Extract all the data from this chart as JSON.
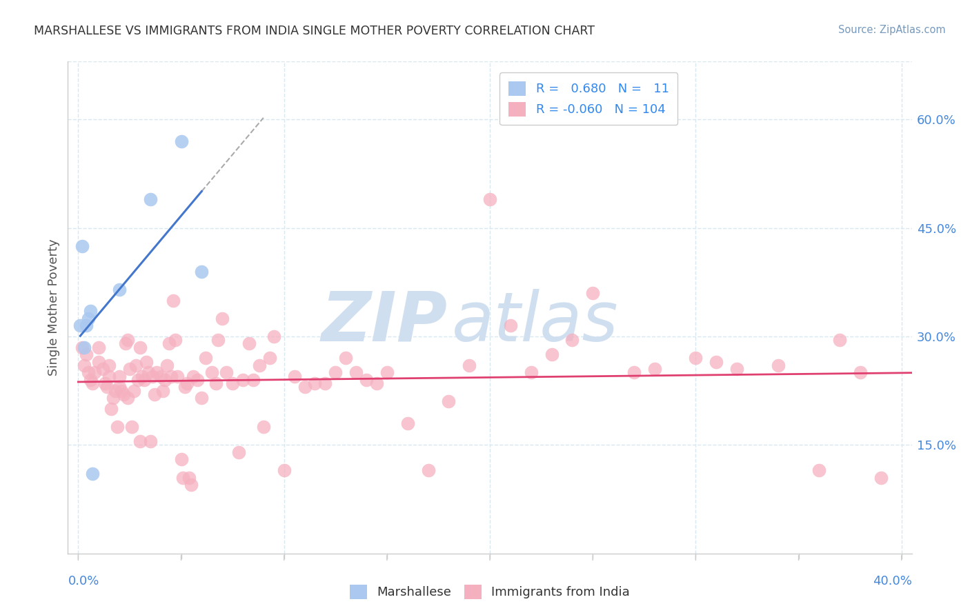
{
  "title": "MARSHALLESE VS IMMIGRANTS FROM INDIA SINGLE MOTHER POVERTY CORRELATION CHART",
  "source": "Source: ZipAtlas.com",
  "ylabel": "Single Mother Poverty",
  "right_yticks": [
    "60.0%",
    "45.0%",
    "30.0%",
    "15.0%"
  ],
  "right_ytick_vals": [
    0.6,
    0.45,
    0.3,
    0.15
  ],
  "xlim": [
    -0.005,
    0.405
  ],
  "ylim": [
    0.0,
    0.68
  ],
  "legend_r_blue": "0.680",
  "legend_n_blue": "11",
  "legend_r_pink": "-0.060",
  "legend_n_pink": "104",
  "blue_color": "#aac8f0",
  "pink_color": "#f5b0c0",
  "trend_blue": "#4477cc",
  "trend_pink": "#e04070",
  "watermark_zip": "ZIP",
  "watermark_atlas": "atlas",
  "watermark_color": "#d0dff0",
  "blue_scatter_x": [
    0.001,
    0.002,
    0.003,
    0.004,
    0.005,
    0.006,
    0.007,
    0.02,
    0.035,
    0.05,
    0.06
  ],
  "blue_scatter_y": [
    0.315,
    0.425,
    0.285,
    0.315,
    0.325,
    0.335,
    0.11,
    0.365,
    0.49,
    0.57,
    0.39
  ],
  "pink_scatter_x": [
    0.002,
    0.003,
    0.004,
    0.005,
    0.006,
    0.007,
    0.008,
    0.01,
    0.01,
    0.012,
    0.013,
    0.014,
    0.015,
    0.015,
    0.016,
    0.017,
    0.018,
    0.019,
    0.02,
    0.02,
    0.021,
    0.022,
    0.023,
    0.024,
    0.024,
    0.025,
    0.026,
    0.027,
    0.028,
    0.029,
    0.03,
    0.03,
    0.031,
    0.032,
    0.033,
    0.034,
    0.035,
    0.036,
    0.037,
    0.038,
    0.04,
    0.041,
    0.042,
    0.043,
    0.044,
    0.045,
    0.046,
    0.047,
    0.048,
    0.05,
    0.051,
    0.052,
    0.053,
    0.054,
    0.055,
    0.056,
    0.058,
    0.06,
    0.062,
    0.065,
    0.067,
    0.068,
    0.07,
    0.072,
    0.075,
    0.078,
    0.08,
    0.083,
    0.085,
    0.088,
    0.09,
    0.093,
    0.095,
    0.1,
    0.105,
    0.11,
    0.115,
    0.12,
    0.125,
    0.13,
    0.135,
    0.14,
    0.145,
    0.15,
    0.16,
    0.17,
    0.18,
    0.19,
    0.2,
    0.21,
    0.22,
    0.23,
    0.24,
    0.25,
    0.27,
    0.28,
    0.3,
    0.31,
    0.32,
    0.34,
    0.36,
    0.37,
    0.38,
    0.39
  ],
  "pink_scatter_y": [
    0.285,
    0.26,
    0.275,
    0.25,
    0.24,
    0.235,
    0.25,
    0.265,
    0.285,
    0.255,
    0.235,
    0.23,
    0.245,
    0.26,
    0.2,
    0.215,
    0.225,
    0.175,
    0.23,
    0.245,
    0.225,
    0.22,
    0.29,
    0.295,
    0.215,
    0.255,
    0.175,
    0.225,
    0.26,
    0.24,
    0.155,
    0.285,
    0.245,
    0.24,
    0.265,
    0.25,
    0.155,
    0.245,
    0.22,
    0.25,
    0.245,
    0.225,
    0.24,
    0.26,
    0.29,
    0.245,
    0.35,
    0.295,
    0.245,
    0.13,
    0.105,
    0.23,
    0.235,
    0.105,
    0.095,
    0.245,
    0.24,
    0.215,
    0.27,
    0.25,
    0.235,
    0.295,
    0.325,
    0.25,
    0.235,
    0.14,
    0.24,
    0.29,
    0.24,
    0.26,
    0.175,
    0.27,
    0.3,
    0.115,
    0.245,
    0.23,
    0.235,
    0.235,
    0.25,
    0.27,
    0.25,
    0.24,
    0.235,
    0.25,
    0.18,
    0.115,
    0.21,
    0.26,
    0.49,
    0.315,
    0.25,
    0.275,
    0.295,
    0.36,
    0.25,
    0.255,
    0.27,
    0.265,
    0.255,
    0.26,
    0.115,
    0.295,
    0.25,
    0.105
  ],
  "xtick_positions": [
    0.0,
    0.1,
    0.2,
    0.3,
    0.4
  ],
  "grid_color": "#d8e8f0",
  "spine_color": "#cccccc"
}
